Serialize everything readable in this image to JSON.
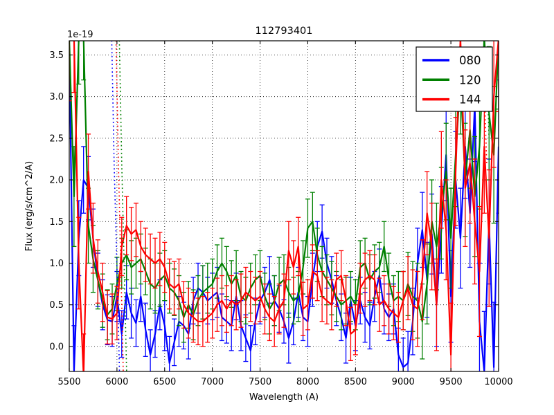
{
  "figure": {
    "background": "#ffffff",
    "frame_color": "#000000"
  },
  "chart_data": {
    "type": "line",
    "title": "112793401",
    "xlabel": "Wavelength (A)",
    "ylabel": "Flux (erg/s/cm^2/A)",
    "offset_text": "1e-19",
    "xlim": [
      5500,
      10000
    ],
    "ylim": [
      -0.3,
      3.67
    ],
    "xticks": [
      5500,
      6000,
      6500,
      7000,
      7500,
      8000,
      8500,
      9000,
      9500,
      10000
    ],
    "yticks": [
      0.0,
      0.5,
      1.0,
      1.5,
      2.0,
      2.5,
      3.0,
      3.5
    ],
    "grid": true,
    "grid_style": "dotted",
    "legend_position": "upper right",
    "x": [
      5500,
      5550,
      5600,
      5650,
      5700,
      5750,
      5800,
      5850,
      5900,
      5950,
      6000,
      6050,
      6100,
      6150,
      6200,
      6250,
      6300,
      6350,
      6400,
      6450,
      6500,
      6550,
      6600,
      6650,
      6700,
      6750,
      6800,
      6850,
      6900,
      6950,
      7000,
      7050,
      7100,
      7150,
      7200,
      7250,
      7300,
      7350,
      7400,
      7450,
      7500,
      7550,
      7600,
      7650,
      7700,
      7750,
      7800,
      7850,
      7900,
      7950,
      8000,
      8050,
      8100,
      8150,
      8200,
      8250,
      8300,
      8350,
      8400,
      8450,
      8500,
      8550,
      8600,
      8650,
      8700,
      8750,
      8800,
      8850,
      8900,
      8950,
      9000,
      9050,
      9100,
      9150,
      9200,
      9250,
      9300,
      9350,
      9400,
      9450,
      9500,
      9550,
      9600,
      9650,
      9700,
      9750,
      9800,
      9850,
      9900,
      9950,
      10000
    ],
    "series": [
      {
        "name": "080",
        "color": "#0000ff",
        "values": [
          3.6,
          -0.3,
          1.3,
          2.0,
          1.9,
          1.3,
          0.8,
          0.5,
          0.32,
          0.3,
          0.6,
          0.15,
          0.65,
          0.4,
          0.28,
          0.6,
          0.2,
          -0.1,
          0.15,
          0.5,
          0.25,
          -0.2,
          0.05,
          0.3,
          0.25,
          0.15,
          0.55,
          0.7,
          0.65,
          0.55,
          0.6,
          0.65,
          0.35,
          0.3,
          0.25,
          0.6,
          0.25,
          0.1,
          -0.05,
          0.3,
          0.55,
          0.65,
          0.8,
          0.55,
          0.45,
          0.3,
          0.1,
          0.3,
          0.65,
          0.35,
          0.3,
          0.8,
          1.2,
          1.38,
          1.0,
          0.8,
          0.55,
          0.35,
          0.1,
          0.55,
          0.25,
          0.55,
          0.35,
          0.25,
          0.6,
          0.85,
          0.45,
          0.35,
          0.45,
          -0.1,
          -0.25,
          -0.2,
          0.3,
          1.0,
          1.4,
          0.8,
          1.35,
          0.5,
          1.4,
          2.3,
          0.6,
          2.0,
          1.3,
          2.4,
          1.6,
          2.9,
          0.3,
          -0.3,
          1.5,
          -0.25,
          2.4
        ],
        "errors": [
          0.6,
          0.55,
          0.45,
          0.4,
          0.38,
          0.35,
          0.32,
          0.3,
          0.3,
          0.3,
          0.3,
          0.28,
          0.32,
          0.3,
          0.28,
          0.3,
          0.32,
          0.3,
          0.28,
          0.3,
          0.3,
          0.32,
          0.28,
          0.3,
          0.28,
          0.3,
          0.28,
          0.3,
          0.32,
          0.28,
          0.28,
          0.3,
          0.28,
          0.26,
          0.3,
          0.28,
          0.3,
          0.28,
          0.3,
          0.28,
          0.28,
          0.3,
          0.28,
          0.3,
          0.28,
          0.26,
          0.3,
          0.28,
          0.3,
          0.28,
          0.3,
          0.32,
          0.3,
          0.32,
          0.3,
          0.28,
          0.3,
          0.28,
          0.3,
          0.28,
          0.3,
          0.28,
          0.3,
          0.28,
          0.3,
          0.32,
          0.3,
          0.28,
          0.3,
          0.32,
          0.35,
          0.38,
          0.4,
          0.42,
          0.45,
          0.45,
          0.48,
          0.5,
          0.52,
          0.55,
          0.55,
          0.58,
          0.6,
          0.62,
          0.65,
          0.68,
          0.7,
          0.72,
          0.75,
          0.78,
          0.8
        ]
      },
      {
        "name": "120",
        "color": "#008000",
        "values": [
          3.7,
          1.8,
          3.7,
          3.7,
          1.45,
          1.05,
          0.8,
          0.55,
          0.38,
          0.45,
          0.75,
          1.0,
          1.1,
          0.95,
          1.0,
          1.05,
          0.9,
          0.75,
          0.7,
          0.8,
          0.85,
          0.7,
          0.65,
          0.55,
          0.35,
          0.5,
          0.38,
          0.55,
          0.65,
          0.7,
          0.75,
          0.9,
          1.0,
          0.9,
          0.75,
          0.85,
          0.6,
          0.55,
          0.7,
          0.8,
          0.85,
          0.6,
          0.45,
          0.55,
          0.75,
          0.8,
          0.65,
          0.55,
          0.6,
          0.95,
          1.42,
          1.5,
          1.1,
          0.9,
          0.8,
          0.7,
          0.6,
          0.5,
          0.55,
          0.6,
          0.5,
          0.95,
          1.0,
          0.8,
          0.9,
          0.95,
          1.2,
          0.8,
          0.55,
          0.6,
          0.55,
          0.75,
          0.6,
          0.55,
          0.3,
          0.75,
          1.5,
          1.2,
          1.6,
          2.1,
          1.3,
          2.3,
          3.2,
          2.0,
          2.6,
          1.8,
          2.4,
          3.7,
          2.8,
          2.3,
          3.7
        ],
        "errors": [
          0.7,
          0.6,
          0.55,
          0.5,
          0.45,
          0.4,
          0.35,
          0.32,
          0.3,
          0.3,
          0.32,
          0.3,
          0.3,
          0.32,
          0.3,
          0.3,
          0.28,
          0.3,
          0.3,
          0.32,
          0.3,
          0.3,
          0.28,
          0.3,
          0.3,
          0.28,
          0.3,
          0.3,
          0.32,
          0.3,
          0.3,
          0.32,
          0.3,
          0.3,
          0.28,
          0.3,
          0.3,
          0.28,
          0.3,
          0.3,
          0.3,
          0.28,
          0.3,
          0.3,
          0.32,
          0.3,
          0.3,
          0.28,
          0.3,
          0.32,
          0.35,
          0.35,
          0.32,
          0.3,
          0.3,
          0.32,
          0.3,
          0.3,
          0.28,
          0.3,
          0.3,
          0.32,
          0.3,
          0.3,
          0.32,
          0.3,
          0.3,
          0.32,
          0.3,
          0.3,
          0.35,
          0.38,
          0.42,
          0.45,
          0.45,
          0.48,
          0.5,
          0.52,
          0.55,
          0.58,
          0.6,
          0.62,
          0.65,
          0.68,
          0.7,
          0.72,
          0.75,
          0.78,
          0.8,
          0.82,
          0.85
        ]
      },
      {
        "name": "144",
        "color": "#ff0000",
        "values": [
          3.7,
          3.7,
          1.0,
          -0.35,
          2.1,
          1.3,
          0.9,
          0.65,
          0.35,
          0.33,
          0.4,
          1.2,
          1.45,
          1.35,
          1.4,
          1.2,
          1.1,
          1.05,
          1.0,
          1.05,
          0.95,
          0.75,
          0.7,
          0.75,
          0.5,
          0.4,
          0.35,
          0.3,
          0.3,
          0.35,
          0.4,
          0.5,
          0.55,
          0.45,
          0.55,
          0.5,
          0.55,
          0.65,
          0.6,
          0.55,
          0.6,
          0.45,
          0.35,
          0.3,
          0.45,
          0.55,
          1.15,
          0.95,
          1.2,
          0.45,
          0.5,
          0.9,
          0.85,
          0.6,
          0.55,
          0.5,
          0.8,
          0.85,
          0.55,
          0.15,
          0.2,
          0.7,
          0.8,
          0.85,
          0.8,
          0.5,
          0.55,
          0.45,
          0.4,
          0.35,
          0.55,
          0.7,
          0.5,
          0.45,
          0.8,
          1.6,
          1.2,
          0.5,
          2.0,
          1.4,
          -0.1,
          2.1,
          3.7,
          1.9,
          2.2,
          1.5,
          0.9,
          2.4,
          1.3,
          3.0,
          3.7
        ],
        "errors": [
          0.75,
          0.65,
          0.55,
          0.5,
          0.45,
          0.42,
          0.38,
          0.35,
          0.32,
          0.3,
          0.32,
          0.35,
          0.35,
          0.32,
          0.32,
          0.3,
          0.32,
          0.3,
          0.3,
          0.32,
          0.3,
          0.3,
          0.32,
          0.3,
          0.28,
          0.3,
          0.3,
          0.28,
          0.3,
          0.3,
          0.3,
          0.32,
          0.3,
          0.28,
          0.3,
          0.3,
          0.32,
          0.3,
          0.3,
          0.28,
          0.3,
          0.3,
          0.28,
          0.3,
          0.3,
          0.32,
          0.35,
          0.32,
          0.35,
          0.32,
          0.3,
          0.32,
          0.3,
          0.3,
          0.28,
          0.3,
          0.32,
          0.3,
          0.3,
          0.32,
          0.3,
          0.3,
          0.32,
          0.3,
          0.3,
          0.32,
          0.3,
          0.3,
          0.32,
          0.3,
          0.35,
          0.38,
          0.42,
          0.45,
          0.48,
          0.5,
          0.52,
          0.55,
          0.58,
          0.6,
          0.62,
          0.65,
          0.68,
          0.7,
          0.72,
          0.75,
          0.78,
          0.8,
          0.82,
          0.85,
          0.88
        ]
      }
    ],
    "masked_dotted": [
      {
        "series": "080",
        "color": "#0000ff",
        "points": [
          [
            5940,
            4.0
          ],
          [
            5970,
            2.2
          ],
          [
            6010,
            0.5
          ],
          [
            6030,
            -0.5
          ]
        ]
      },
      {
        "series": "144",
        "color": "#ff0000",
        "points": [
          [
            5985,
            4.0
          ],
          [
            6015,
            2.2
          ],
          [
            6050,
            0.5
          ],
          [
            6070,
            -0.5
          ]
        ]
      },
      {
        "series": "120",
        "color": "#008000",
        "points": [
          [
            6020,
            4.0
          ],
          [
            6050,
            2.2
          ],
          [
            6085,
            0.5
          ],
          [
            6105,
            -0.5
          ]
        ]
      },
      {
        "series": "144",
        "color": "#ff0000",
        "points": [
          [
            9850,
            3.1
          ],
          [
            9875,
            2.2
          ]
        ]
      },
      {
        "series": "120",
        "color": "#008000",
        "points": [
          [
            9880,
            3.3
          ],
          [
            9900,
            2.5
          ]
        ]
      }
    ],
    "legend": [
      {
        "label": "080",
        "color": "#0000ff"
      },
      {
        "label": "120",
        "color": "#008000"
      },
      {
        "label": "144",
        "color": "#ff0000"
      }
    ]
  }
}
